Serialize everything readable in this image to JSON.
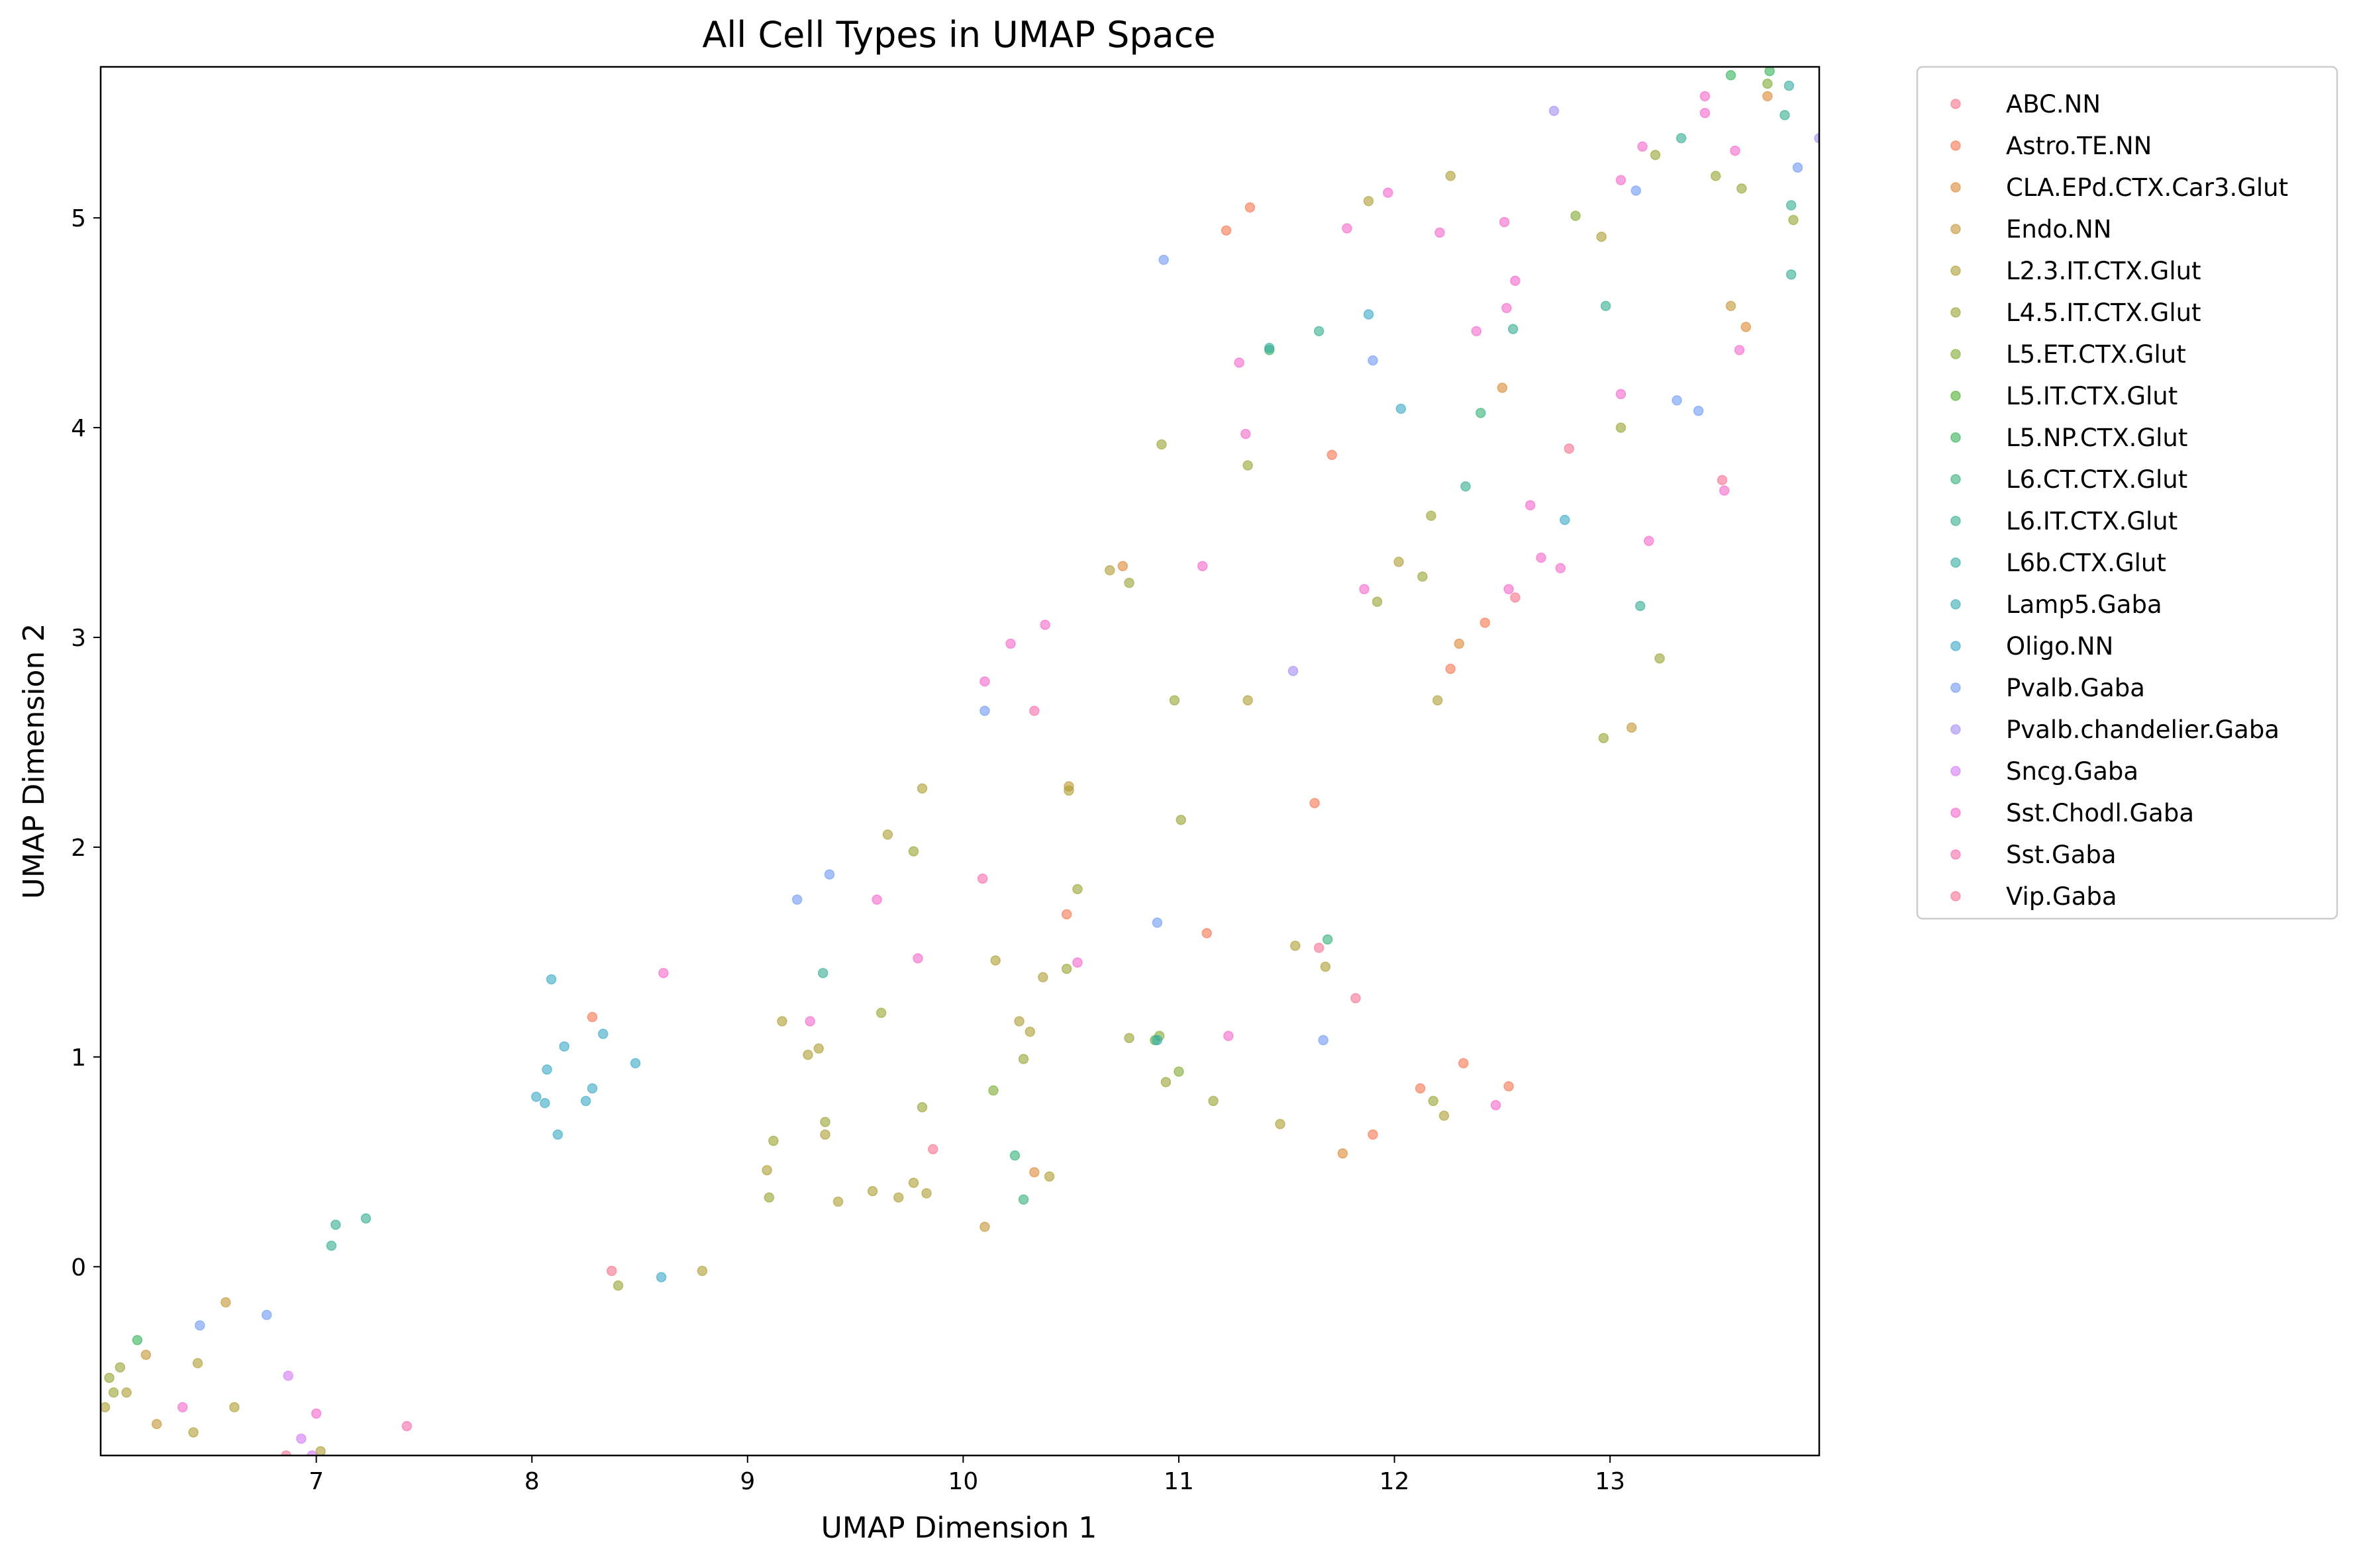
{
  "chart_data": {
    "type": "scatter",
    "title": "All Cell Types in UMAP Space",
    "xlabel": "UMAP Dimension 1",
    "ylabel": "UMAP Dimension 2",
    "xlim": [
      6.0,
      13.97
    ],
    "ylim": [
      -0.9,
      5.72
    ],
    "xticks": [
      7,
      8,
      9,
      10,
      11,
      12,
      13
    ],
    "yticks": [
      0,
      1,
      2,
      3,
      4,
      5
    ],
    "grid": false,
    "legend_position": "outside-right",
    "series": [
      {
        "name": "ABC.NN",
        "color": "#f77189",
        "points": [
          [
            8.37,
            -0.02
          ],
          [
            12.56,
            3.19
          ]
        ]
      },
      {
        "name": "Astro.TE.NN",
        "color": "#f7754f",
        "points": [
          [
            11.22,
            4.94
          ],
          [
            11.33,
            5.05
          ],
          [
            11.71,
            3.87
          ],
          [
            11.63,
            2.21
          ],
          [
            10.48,
            1.68
          ],
          [
            11.13,
            1.59
          ],
          [
            8.28,
            1.19
          ],
          [
            11.9,
            0.63
          ],
          [
            12.12,
            0.85
          ],
          [
            12.32,
            0.97
          ],
          [
            12.53,
            0.86
          ],
          [
            12.42,
            3.07
          ],
          [
            12.26,
            2.85
          ]
        ]
      },
      {
        "name": "CLA.EPd.CTX.Car3.Glut",
        "color": "#dc8932",
        "points": [
          [
            10.33,
            0.45
          ],
          [
            11.76,
            0.54
          ],
          [
            12.3,
            2.97
          ],
          [
            12.5,
            4.19
          ],
          [
            13.63,
            4.48
          ],
          [
            13.73,
            5.58
          ],
          [
            10.74,
            3.34
          ]
        ]
      },
      {
        "name": "Endo.NN",
        "color": "#c39532",
        "points": [
          [
            6.58,
            -0.17
          ],
          [
            6.21,
            -0.42
          ],
          [
            6.26,
            -0.75
          ],
          [
            10.49,
            2.29
          ],
          [
            10.1,
            0.19
          ],
          [
            13.56,
            4.58
          ],
          [
            13.1,
            2.57
          ]
        ]
      },
      {
        "name": "L2.3.IT.CTX.Glut",
        "color": "#ae9d31",
        "points": [
          [
            6.02,
            -0.67
          ],
          [
            6.12,
            -0.6
          ],
          [
            6.45,
            -0.46
          ],
          [
            6.43,
            -0.79
          ],
          [
            6.62,
            -0.67
          ],
          [
            7.02,
            -0.88
          ],
          [
            8.79,
            -0.02
          ],
          [
            9.16,
            1.17
          ],
          [
            9.33,
            1.04
          ],
          [
            9.28,
            1.01
          ],
          [
            9.36,
            0.63
          ],
          [
            9.09,
            0.46
          ],
          [
            9.42,
            0.31
          ],
          [
            9.58,
            0.36
          ],
          [
            9.7,
            0.33
          ],
          [
            9.77,
            0.4
          ],
          [
            9.83,
            0.35
          ],
          [
            10.15,
            1.46
          ],
          [
            10.26,
            1.17
          ],
          [
            10.31,
            1.12
          ],
          [
            10.37,
            1.38
          ],
          [
            10.4,
            0.43
          ],
          [
            10.49,
            2.27
          ],
          [
            9.65,
            2.06
          ],
          [
            9.81,
            2.28
          ],
          [
            10.68,
            3.32
          ],
          [
            11.32,
            2.7
          ],
          [
            11.47,
            0.68
          ],
          [
            11.68,
            1.43
          ],
          [
            12.2,
            2.7
          ],
          [
            12.02,
            3.36
          ],
          [
            12.23,
            0.72
          ],
          [
            12.26,
            5.2
          ],
          [
            11.88,
            5.08
          ],
          [
            12.96,
            4.91
          ],
          [
            11.54,
            1.53
          ]
        ]
      },
      {
        "name": "L4.5.IT.CTX.Glut",
        "color": "#97a431",
        "points": [
          [
            6.04,
            -0.53
          ],
          [
            6.06,
            -0.6
          ],
          [
            6.09,
            -0.48
          ],
          [
            8.4,
            -0.09
          ],
          [
            9.12,
            0.6
          ],
          [
            9.1,
            0.33
          ],
          [
            9.36,
            0.69
          ],
          [
            9.62,
            1.21
          ],
          [
            9.77,
            1.98
          ],
          [
            9.81,
            0.76
          ],
          [
            10.28,
            0.99
          ],
          [
            10.48,
            1.42
          ],
          [
            10.53,
            1.8
          ],
          [
            10.77,
            1.09
          ],
          [
            10.94,
            0.88
          ],
          [
            10.98,
            2.7
          ],
          [
            11.01,
            2.13
          ],
          [
            11.16,
            0.79
          ],
          [
            10.77,
            3.26
          ],
          [
            10.92,
            3.92
          ],
          [
            11.32,
            3.82
          ],
          [
            11.92,
            3.17
          ],
          [
            12.17,
            3.58
          ],
          [
            12.13,
            3.29
          ],
          [
            12.18,
            0.79
          ],
          [
            13.23,
            2.9
          ],
          [
            13.05,
            4.0
          ],
          [
            12.97,
            2.52
          ],
          [
            13.21,
            5.3
          ],
          [
            13.49,
            5.2
          ],
          [
            13.61,
            5.14
          ],
          [
            13.85,
            4.99
          ]
        ]
      },
      {
        "name": "L5.ET.CTX.Glut",
        "color": "#7fab31",
        "points": [
          [
            10.14,
            0.84
          ],
          [
            10.91,
            1.1
          ],
          [
            11.0,
            0.93
          ],
          [
            12.84,
            5.01
          ],
          [
            13.73,
            5.64
          ]
        ]
      },
      {
        "name": "L5.IT.CTX.Glut",
        "color": "#50b131",
        "points": [
          [
            10.89,
            1.08
          ]
        ]
      },
      {
        "name": "L5.NP.CTX.Glut",
        "color": "#32b25a",
        "points": [
          [
            6.17,
            -0.35
          ],
          [
            11.42,
            4.37
          ],
          [
            13.56,
            5.68
          ],
          [
            13.74,
            5.7
          ]
        ]
      },
      {
        "name": "L6.CT.CTX.Glut",
        "color": "#33b07a",
        "points": [
          [
            10.24,
            0.53
          ],
          [
            10.28,
            0.32
          ],
          [
            12.4,
            4.07
          ],
          [
            11.69,
            1.56
          ]
        ]
      },
      {
        "name": "L6.IT.CTX.Glut",
        "color": "#34ae91",
        "points": [
          [
            7.09,
            0.2
          ],
          [
            7.07,
            0.1
          ],
          [
            7.23,
            0.23
          ],
          [
            9.35,
            1.4
          ],
          [
            11.65,
            4.46
          ],
          [
            12.55,
            4.47
          ],
          [
            12.98,
            4.58
          ],
          [
            13.14,
            3.15
          ],
          [
            12.33,
            3.72
          ],
          [
            13.84,
            4.73
          ],
          [
            13.84,
            5.06
          ],
          [
            13.81,
            5.49
          ],
          [
            13.33,
            5.38
          ]
        ]
      },
      {
        "name": "L6b.CTX.Glut",
        "color": "#35aca4",
        "points": [
          [
            11.42,
            4.38
          ],
          [
            13.83,
            5.63
          ]
        ]
      },
      {
        "name": "Lamp5.Gaba",
        "color": "#36abb4",
        "points": [
          [
            10.9,
            1.08
          ]
        ]
      },
      {
        "name": "Oligo.NN",
        "color": "#38a8c5",
        "points": [
          [
            8.09,
            1.37
          ],
          [
            8.15,
            1.05
          ],
          [
            8.33,
            1.11
          ],
          [
            8.48,
            0.97
          ],
          [
            8.07,
            0.94
          ],
          [
            8.02,
            0.81
          ],
          [
            8.06,
            0.78
          ],
          [
            8.12,
            0.63
          ],
          [
            8.28,
            0.85
          ],
          [
            8.25,
            0.79
          ],
          [
            8.6,
            -0.05
          ],
          [
            11.88,
            4.54
          ],
          [
            12.03,
            4.09
          ],
          [
            12.79,
            3.56
          ]
        ]
      },
      {
        "name": "Pvalb.Gaba",
        "color": "#6e9af5",
        "points": [
          [
            6.46,
            -0.28
          ],
          [
            6.77,
            -0.23
          ],
          [
            9.23,
            1.75
          ],
          [
            9.38,
            1.87
          ],
          [
            10.1,
            2.65
          ],
          [
            10.9,
            1.64
          ],
          [
            10.93,
            4.8
          ],
          [
            11.67,
            1.08
          ],
          [
            11.9,
            4.32
          ],
          [
            13.31,
            4.13
          ],
          [
            13.41,
            4.08
          ],
          [
            13.12,
            5.13
          ],
          [
            13.87,
            5.24
          ]
        ]
      },
      {
        "name": "Pvalb.chandelier.Gaba",
        "color": "#a48cf4",
        "points": [
          [
            11.53,
            2.84
          ],
          [
            12.74,
            5.51
          ],
          [
            13.97,
            5.38
          ]
        ]
      },
      {
        "name": "Sncg.Gaba",
        "color": "#d378f5",
        "points": [
          [
            6.87,
            -0.52
          ],
          [
            6.93,
            -0.82
          ],
          [
            6.98,
            -0.9
          ]
        ]
      },
      {
        "name": "Sst.Chodl.Gaba",
        "color": "#f565cc",
        "points": [
          [
            7.0,
            -0.7
          ],
          [
            6.38,
            -0.67
          ],
          [
            8.61,
            1.4
          ],
          [
            9.29,
            1.17
          ],
          [
            9.6,
            1.75
          ],
          [
            9.79,
            1.47
          ],
          [
            10.1,
            2.79
          ],
          [
            10.22,
            2.97
          ],
          [
            10.38,
            3.06
          ],
          [
            10.53,
            1.45
          ],
          [
            11.11,
            3.34
          ],
          [
            11.28,
            4.31
          ],
          [
            11.31,
            3.97
          ],
          [
            11.23,
            1.1
          ],
          [
            11.78,
            4.95
          ],
          [
            11.97,
            5.12
          ],
          [
            12.21,
            4.93
          ],
          [
            12.51,
            4.98
          ],
          [
            12.52,
            4.57
          ],
          [
            12.56,
            4.7
          ],
          [
            12.38,
            4.46
          ],
          [
            11.86,
            3.23
          ],
          [
            12.53,
            3.23
          ],
          [
            12.63,
            3.63
          ],
          [
            12.68,
            3.38
          ],
          [
            12.77,
            3.33
          ],
          [
            13.05,
            4.16
          ],
          [
            13.05,
            5.18
          ],
          [
            13.15,
            5.34
          ],
          [
            13.18,
            3.46
          ],
          [
            13.44,
            5.5
          ],
          [
            13.44,
            5.58
          ],
          [
            13.6,
            4.37
          ],
          [
            13.58,
            5.32
          ],
          [
            13.53,
            3.7
          ],
          [
            12.47,
            0.77
          ]
        ]
      },
      {
        "name": "Sst.Gaba",
        "color": "#f66bad",
        "points": [
          [
            7.42,
            -0.76
          ],
          [
            10.33,
            2.65
          ],
          [
            10.09,
            1.85
          ]
        ]
      },
      {
        "name": "Vip.Gaba",
        "color": "#f7718f",
        "points": [
          [
            6.86,
            -0.9
          ],
          [
            9.86,
            0.56
          ],
          [
            11.65,
            1.52
          ],
          [
            11.82,
            1.28
          ],
          [
            12.81,
            3.9
          ],
          [
            13.52,
            3.75
          ]
        ]
      }
    ]
  }
}
